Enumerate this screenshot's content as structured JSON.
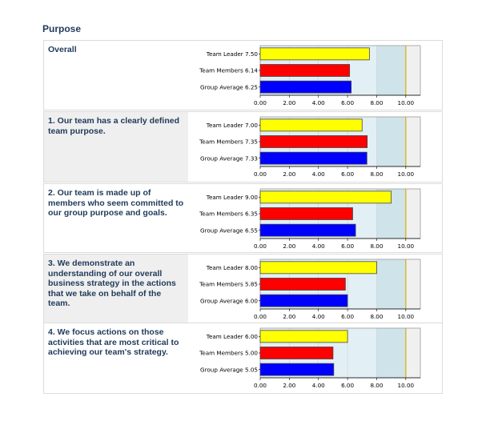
{
  "page_title": "Purpose",
  "colors": {
    "team_leader": "#ffff00",
    "team_members": "#ff0000",
    "group_average": "#0000ff",
    "band_low": "#e2f0f5",
    "band_high": "#cfe3ea",
    "ref_line": "#d4b000"
  },
  "chart_data": [
    {
      "type": "bar",
      "question": "Overall",
      "shaded": false,
      "categories": [
        "Team Leader",
        "Team Members",
        "Group Average"
      ],
      "values": [
        7.5,
        6.14,
        6.25
      ],
      "value_labels": [
        "7.50",
        "6.14",
        "6.25"
      ],
      "xlim": [
        0,
        11
      ],
      "ticks": [
        "0.00",
        "2.00",
        "4.00",
        "6.00",
        "8.00",
        "10.00"
      ]
    },
    {
      "type": "bar",
      "question": "1. Our team has a clearly defined team purpose.",
      "shaded": true,
      "categories": [
        "Team Leader",
        "Team Members",
        "Group Average"
      ],
      "values": [
        7.0,
        7.35,
        7.33
      ],
      "value_labels": [
        "7.00",
        "7.35",
        "7.33"
      ],
      "xlim": [
        0,
        11
      ],
      "ticks": [
        "0.00",
        "2.00",
        "4.00",
        "6.00",
        "8.00",
        "10.00"
      ]
    },
    {
      "type": "bar",
      "question": "2. Our team is made up of members who seem committed to our group purpose and goals.",
      "shaded": false,
      "categories": [
        "Team Leader",
        "Team Members",
        "Group Average"
      ],
      "values": [
        9.0,
        6.35,
        6.55
      ],
      "value_labels": [
        "9.00",
        "6.35",
        "6.55"
      ],
      "xlim": [
        0,
        11
      ],
      "ticks": [
        "0.00",
        "2.00",
        "4.00",
        "6.00",
        "8.00",
        "10.00"
      ]
    },
    {
      "type": "bar",
      "question": "3. We demonstrate an understanding of our overall business strategy in the actions that we take on behalf of the team.",
      "shaded": true,
      "categories": [
        "Team Leader",
        "Team Members",
        "Group Average"
      ],
      "values": [
        8.0,
        5.85,
        6.0
      ],
      "value_labels": [
        "8.00",
        "5.85",
        "6.00"
      ],
      "xlim": [
        0,
        11
      ],
      "ticks": [
        "0.00",
        "2.00",
        "4.00",
        "6.00",
        "8.00",
        "10.00"
      ]
    },
    {
      "type": "bar",
      "question": "4. We focus actions on those activities that are most critical to achieving our team's strategy.",
      "shaded": false,
      "categories": [
        "Team Leader",
        "Team Members",
        "Group Average"
      ],
      "values": [
        6.0,
        5.0,
        5.05
      ],
      "value_labels": [
        "6.00",
        "5.00",
        "5.05"
      ],
      "xlim": [
        0,
        11
      ],
      "ticks": [
        "0.00",
        "2.00",
        "4.00",
        "6.00",
        "8.00",
        "10.00"
      ]
    }
  ]
}
